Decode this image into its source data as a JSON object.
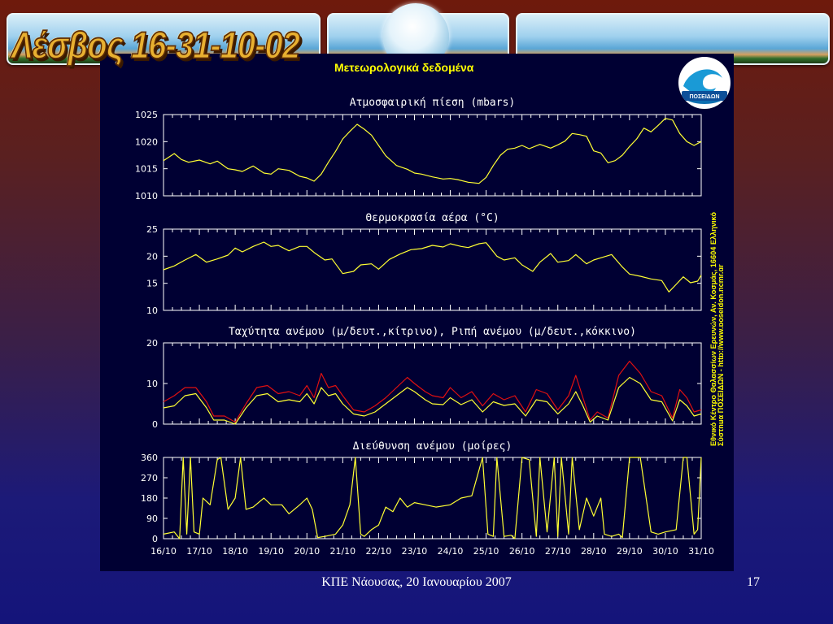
{
  "slide": {
    "title": "Λέσβος 16-31-10-02",
    "footer": "ΚΠΕ Νάουσας, 20 Ιανουαρίου 2007",
    "page_number": "17"
  },
  "panel": {
    "heading": "Μετεωρολογικά δεδομένα",
    "logo_text": "ΠΟΣΕΙΔΩΝ",
    "credit_line1": "Εθνικό Κέντρο Θαλασσίων Ερευνών, Αν. Κοσμάς, 16604 Ελληνικό",
    "credit_line2": "Σύστημα ΠΟΣΕΙΔΩΝ - http://www.poseidon.ncmr.gr"
  },
  "colors": {
    "panel_bg": "#000033",
    "axis": "#ffffff",
    "series_yellow": "#ffff33",
    "series_red": "#e01010",
    "heading": "#ffff00"
  },
  "chart_data": [
    {
      "type": "line",
      "title": "Ατμοσφαιρική πίεση (mbars)",
      "ylim": [
        1010,
        1025
      ],
      "yticks": [
        1010,
        1015,
        1020,
        1025
      ],
      "xlim": [
        0,
        15
      ],
      "xticks": [
        "16/10",
        "17/10",
        "18/10",
        "19/10",
        "20/10",
        "21/10",
        "22/10",
        "23/10",
        "24/10",
        "25/10",
        "26/10",
        "27/10",
        "28/10",
        "29/10",
        "30/10",
        "31/10"
      ],
      "xtick_labels_shown": false,
      "series": [
        {
          "color": "yellow",
          "x": [
            0,
            0.3,
            0.5,
            0.7,
            1,
            1.3,
            1.5,
            1.8,
            2,
            2.2,
            2.5,
            2.8,
            3,
            3.2,
            3.5,
            3.8,
            4,
            4.2,
            4.4,
            4.6,
            4.8,
            5,
            5.2,
            5.4,
            5.6,
            5.8,
            6,
            6.2,
            6.5,
            6.8,
            7,
            7.2,
            7.5,
            7.8,
            8,
            8.2,
            8.5,
            8.8,
            9,
            9.2,
            9.4,
            9.6,
            9.8,
            10,
            10.2,
            10.5,
            10.8,
            11,
            11.2,
            11.4,
            11.6,
            11.8,
            12,
            12.2,
            12.4,
            12.6,
            12.8,
            13,
            13.2,
            13.4,
            13.6,
            13.8,
            14,
            14.2,
            14.4,
            14.6,
            14.8,
            15
          ],
          "y": [
            1016.5,
            1017.8,
            1016.7,
            1016.2,
            1016.6,
            1015.9,
            1016.4,
            1015.0,
            1014.8,
            1014.5,
            1015.5,
            1014.2,
            1014.0,
            1015.0,
            1014.7,
            1013.6,
            1013.3,
            1012.7,
            1014.0,
            1016.2,
            1018.2,
            1020.5,
            1021.9,
            1023.2,
            1022.3,
            1021.2,
            1019.3,
            1017.4,
            1015.6,
            1014.9,
            1014.2,
            1014.0,
            1013.5,
            1013.1,
            1013.2,
            1013.0,
            1012.5,
            1012.3,
            1013.4,
            1015.6,
            1017.5,
            1018.6,
            1018.8,
            1019.3,
            1018.7,
            1019.5,
            1018.8,
            1019.4,
            1020.1,
            1021.5,
            1021.3,
            1021.0,
            1018.3,
            1017.9,
            1016.1,
            1016.5,
            1017.5,
            1019.1,
            1020.5,
            1022.5,
            1021.8,
            1023.0,
            1024.3,
            1024.0,
            1021.5,
            1020.0,
            1019.3,
            1020.0
          ]
        }
      ]
    },
    {
      "type": "line",
      "title": "Θερμοκρασία αέρα (°C)",
      "ylim": [
        10,
        25
      ],
      "yticks": [
        10,
        15,
        20,
        25
      ],
      "xlim": [
        0,
        15
      ],
      "xtick_labels_shown": false,
      "series": [
        {
          "color": "yellow",
          "x": [
            0,
            0.3,
            0.6,
            0.9,
            1.2,
            1.5,
            1.8,
            2,
            2.2,
            2.5,
            2.8,
            3,
            3.2,
            3.5,
            3.8,
            4,
            4.2,
            4.5,
            4.7,
            5,
            5.3,
            5.5,
            5.8,
            6,
            6.3,
            6.6,
            6.9,
            7.2,
            7.5,
            7.8,
            8,
            8.3,
            8.5,
            8.8,
            9,
            9.3,
            9.5,
            9.8,
            10,
            10.3,
            10.5,
            10.8,
            11,
            11.3,
            11.5,
            11.8,
            12,
            12.2,
            12.5,
            12.8,
            13,
            13.3,
            13.6,
            13.9,
            14.1,
            14.3,
            14.5,
            14.7,
            14.9,
            15
          ],
          "y": [
            17.5,
            18.2,
            19.3,
            20.3,
            18.9,
            19.5,
            20.2,
            21.5,
            20.8,
            21.8,
            22.6,
            21.8,
            22.0,
            21.0,
            21.8,
            21.8,
            20.7,
            19.3,
            19.5,
            16.8,
            17.2,
            18.4,
            18.6,
            17.6,
            19.4,
            20.4,
            21.2,
            21.4,
            22.0,
            21.7,
            22.3,
            21.8,
            21.6,
            22.3,
            22.5,
            20.0,
            19.3,
            19.7,
            18.4,
            17.2,
            18.9,
            20.5,
            18.9,
            19.2,
            20.3,
            18.6,
            19.3,
            19.7,
            20.3,
            18.0,
            16.7,
            16.3,
            15.8,
            15.5,
            13.4,
            14.8,
            16.2,
            15.1,
            15.4,
            16.5
          ]
        }
      ]
    },
    {
      "type": "line",
      "title": "Ταχύτητα ανέμου (μ/δευτ.,κίτρινο), Ριπή ανέμου (μ/δευτ.,κόκκινο)",
      "ylim": [
        0,
        20
      ],
      "yticks": [
        0,
        10,
        20
      ],
      "xlim": [
        0,
        15
      ],
      "xtick_labels_shown": false,
      "series": [
        {
          "color": "yellow",
          "x": [
            0,
            0.3,
            0.6,
            0.9,
            1.2,
            1.4,
            1.7,
            2,
            2.3,
            2.6,
            2.9,
            3.2,
            3.5,
            3.8,
            4,
            4.2,
            4.4,
            4.6,
            4.8,
            5,
            5.3,
            5.6,
            5.9,
            6.2,
            6.5,
            6.8,
            7,
            7.3,
            7.5,
            7.8,
            8,
            8.3,
            8.6,
            8.9,
            9.2,
            9.5,
            9.8,
            10.1,
            10.4,
            10.7,
            11,
            11.3,
            11.5,
            11.7,
            11.9,
            12.1,
            12.4,
            12.7,
            13,
            13.3,
            13.6,
            13.9,
            14.2,
            14.4,
            14.6,
            14.8,
            15
          ],
          "y": [
            4,
            4.5,
            7,
            7.5,
            4,
            1,
            1,
            0,
            4,
            7,
            7.5,
            5.5,
            6,
            5.5,
            7.5,
            5,
            9,
            7,
            7.5,
            5,
            2.5,
            2,
            3,
            5,
            7,
            9,
            8,
            6,
            5,
            4.8,
            6.5,
            4.8,
            6,
            3,
            5.5,
            4.6,
            5,
            2,
            6,
            5.5,
            2.5,
            5,
            8,
            4.5,
            0.5,
            2,
            1,
            9,
            11.5,
            10,
            6,
            5.5,
            0.8,
            6,
            4.5,
            2,
            2.5
          ]
        },
        {
          "color": "red",
          "x": [
            0,
            0.3,
            0.6,
            0.9,
            1.2,
            1.4,
            1.7,
            2,
            2.3,
            2.6,
            2.9,
            3.2,
            3.5,
            3.8,
            4,
            4.2,
            4.4,
            4.6,
            4.8,
            5,
            5.3,
            5.6,
            5.9,
            6.2,
            6.5,
            6.8,
            7,
            7.3,
            7.5,
            7.8,
            8,
            8.3,
            8.6,
            8.9,
            9.2,
            9.5,
            9.8,
            10.1,
            10.4,
            10.7,
            11,
            11.3,
            11.5,
            11.7,
            11.9,
            12.1,
            12.4,
            12.7,
            13,
            13.3,
            13.6,
            13.9,
            14.2,
            14.4,
            14.6,
            14.8,
            15
          ],
          "y": [
            5.5,
            7,
            9,
            9,
            5.5,
            2,
            2,
            0.5,
            5,
            9,
            9.5,
            7.5,
            8,
            7,
            9.5,
            6.5,
            12.5,
            9,
            9.5,
            7,
            3.5,
            3,
            4.5,
            6.5,
            9,
            11.5,
            10,
            8,
            7,
            6.5,
            9,
            6.5,
            8,
            4.5,
            7.5,
            6,
            7,
            3,
            8.5,
            7.5,
            3.5,
            7,
            12,
            6.5,
            1,
            3,
            1.5,
            12,
            15.5,
            12.5,
            8,
            7,
            1.5,
            8.5,
            6.5,
            3,
            3.5
          ]
        }
      ]
    },
    {
      "type": "line",
      "title": "Διεύθυνση ανέμου (μοίρες)",
      "ylim": [
        0,
        360
      ],
      "yticks": [
        0,
        90,
        180,
        270,
        360
      ],
      "xlim": [
        0,
        15
      ],
      "xticks": [
        "16/10",
        "17/10",
        "18/10",
        "19/10",
        "20/10",
        "21/10",
        "22/10",
        "23/10",
        "24/10",
        "25/10",
        "26/10",
        "27/10",
        "28/10",
        "29/10",
        "30/10",
        "31/10"
      ],
      "xtick_labels_shown": true,
      "series": [
        {
          "color": "yellow",
          "x": [
            0,
            0.3,
            0.45,
            0.55,
            0.65,
            0.75,
            0.85,
            1,
            1.1,
            1.3,
            1.5,
            1.6,
            1.8,
            2,
            2.15,
            2.3,
            2.5,
            2.8,
            3,
            3.3,
            3.5,
            3.8,
            4,
            4.15,
            4.3,
            4.5,
            4.8,
            5,
            5.2,
            5.35,
            5.5,
            5.6,
            5.8,
            6,
            6.2,
            6.4,
            6.6,
            6.8,
            7,
            7.3,
            7.6,
            8,
            8.3,
            8.6,
            8.9,
            9.05,
            9.2,
            9.3,
            9.5,
            9.7,
            9.8,
            10,
            10.2,
            10.4,
            10.5,
            10.7,
            10.9,
            11,
            11.1,
            11.3,
            11.4,
            11.6,
            11.8,
            12,
            12.2,
            12.3,
            12.5,
            12.7,
            12.8,
            13,
            13.3,
            13.6,
            13.8,
            14,
            14.3,
            14.5,
            14.6,
            14.8,
            14.9,
            15
          ],
          "y": [
            20,
            30,
            0,
            360,
            20,
            360,
            30,
            20,
            180,
            150,
            350,
            360,
            130,
            180,
            360,
            130,
            140,
            180,
            150,
            150,
            110,
            150,
            180,
            130,
            5,
            10,
            20,
            60,
            150,
            360,
            20,
            10,
            40,
            60,
            140,
            120,
            180,
            140,
            160,
            150,
            140,
            150,
            180,
            190,
            360,
            20,
            10,
            360,
            10,
            15,
            0,
            360,
            350,
            10,
            360,
            30,
            360,
            10,
            360,
            20,
            360,
            40,
            180,
            100,
            180,
            20,
            10,
            20,
            5,
            360,
            360,
            30,
            20,
            30,
            40,
            360,
            360,
            20,
            40,
            360
          ]
        }
      ]
    }
  ]
}
